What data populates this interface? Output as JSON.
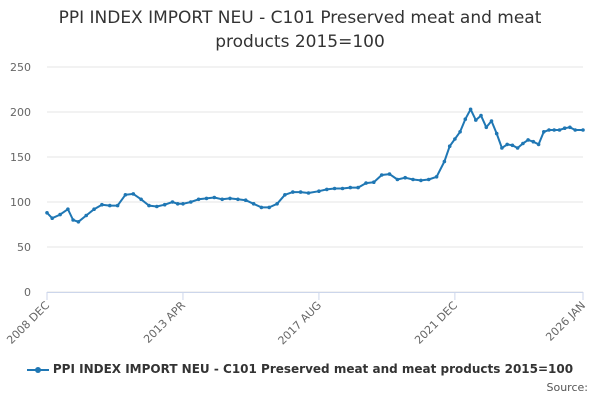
{
  "chart_data": {
    "type": "line",
    "title_lines": [
      "PPI INDEX IMPORT NEU - C101 Preserved meat and meat",
      "products 2015=100"
    ],
    "xlabel": "",
    "ylabel": "",
    "ylim": [
      0,
      250
    ],
    "yticks": [
      0,
      50,
      100,
      150,
      200,
      250
    ],
    "xlim": [
      "2008-12",
      "2026-01"
    ],
    "xticks": [
      {
        "label": "2008 DEC",
        "date": "2008-12"
      },
      {
        "label": "2013 APR",
        "date": "2013-04"
      },
      {
        "label": "2017 AUG",
        "date": "2017-08"
      },
      {
        "label": "2021 DEC",
        "date": "2021-12"
      },
      {
        "label": "2026 JAN",
        "date": "2026-01"
      }
    ],
    "grid": true,
    "legend_placement": "bottom",
    "color": "#1f77b4",
    "series": [
      {
        "name": "PPI INDEX IMPORT NEU - C101 Preserved meat and meat products 2015=100",
        "x": [
          "2008-12",
          "2009-02",
          "2009-05",
          "2009-08",
          "2009-10",
          "2009-12",
          "2010-03",
          "2010-06",
          "2010-09",
          "2010-12",
          "2011-03",
          "2011-06",
          "2011-09",
          "2011-12",
          "2012-03",
          "2012-06",
          "2012-09",
          "2012-12",
          "2013-02",
          "2013-04",
          "2013-07",
          "2013-10",
          "2014-01",
          "2014-04",
          "2014-07",
          "2014-10",
          "2015-01",
          "2015-04",
          "2015-07",
          "2015-10",
          "2016-01",
          "2016-04",
          "2016-07",
          "2016-10",
          "2017-01",
          "2017-04",
          "2017-08",
          "2017-11",
          "2018-02",
          "2018-05",
          "2018-08",
          "2018-11",
          "2019-02",
          "2019-05",
          "2019-08",
          "2019-11",
          "2020-02",
          "2020-05",
          "2020-08",
          "2020-11",
          "2021-02",
          "2021-05",
          "2021-08",
          "2021-10",
          "2021-12",
          "2022-02",
          "2022-04",
          "2022-06",
          "2022-08",
          "2022-10",
          "2022-12",
          "2023-02",
          "2023-04",
          "2023-06",
          "2023-08",
          "2023-10",
          "2023-12",
          "2024-02",
          "2024-04",
          "2024-06",
          "2024-08",
          "2024-10",
          "2024-12",
          "2025-02",
          "2025-04",
          "2025-06",
          "2025-08",
          "2025-10",
          "2026-01"
        ],
        "values": [
          88,
          82,
          86,
          92,
          80,
          78,
          85,
          92,
          97,
          96,
          96,
          108,
          109,
          103,
          96,
          95,
          97,
          100,
          98,
          98,
          100,
          103,
          104,
          105,
          103,
          104,
          103,
          102,
          98,
          94,
          94,
          98,
          108,
          111,
          111,
          110,
          112,
          114,
          115,
          115,
          116,
          116,
          121,
          122,
          130,
          131,
          125,
          127,
          125,
          124,
          125,
          128,
          145,
          162,
          170,
          178,
          192,
          203,
          191,
          196,
          183,
          190,
          176,
          160,
          164,
          163,
          160,
          165,
          169,
          167,
          164,
          178,
          180,
          180,
          180,
          182,
          183,
          180,
          180
        ]
      }
    ]
  },
  "credits": "Source:"
}
